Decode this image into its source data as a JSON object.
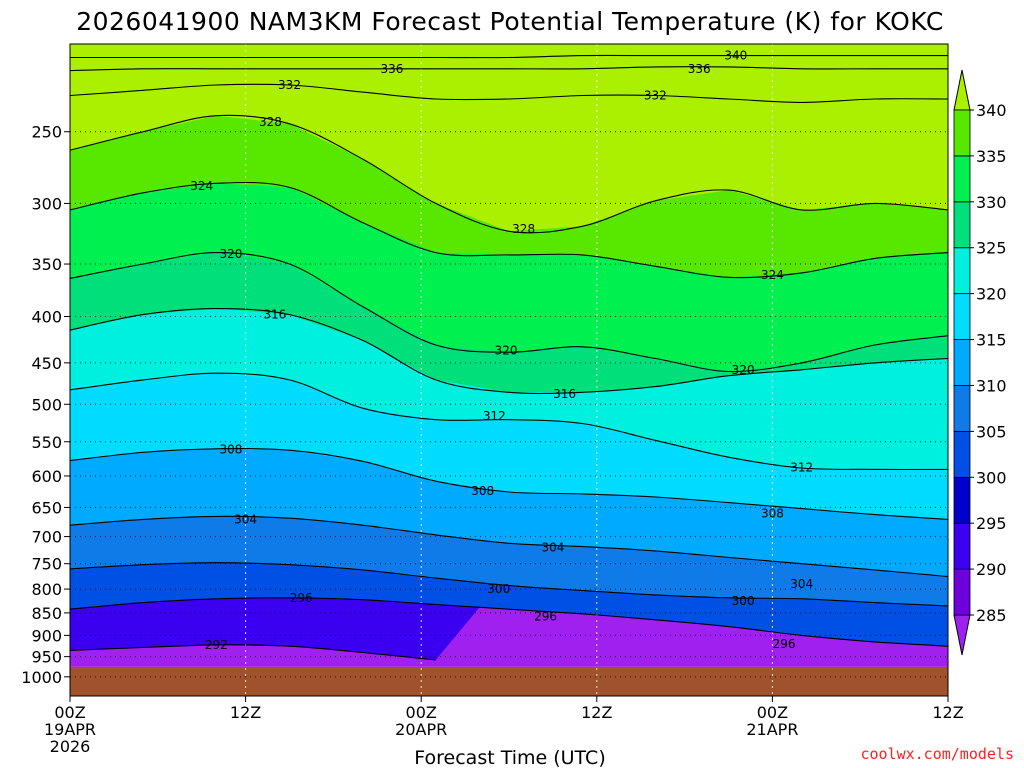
{
  "chart_data": {
    "type": "heatmap",
    "title": "2026041900 NAM3KM Forecast Potential Temperature (K) for KOKC",
    "xlabel": "Forecast Time (UTC)",
    "ylabel": "",
    "x_range_hours": [
      0,
      60
    ],
    "x_ticks": [
      {
        "hour": 0,
        "lines": [
          "00Z",
          "19APR",
          "2026"
        ]
      },
      {
        "hour": 12,
        "lines": [
          "12Z"
        ]
      },
      {
        "hour": 24,
        "lines": [
          "00Z",
          "20APR"
        ]
      },
      {
        "hour": 36,
        "lines": [
          "12Z"
        ]
      },
      {
        "hour": 48,
        "lines": [
          "00Z",
          "21APR"
        ]
      },
      {
        "hour": 60,
        "lines": [
          "12Z"
        ]
      }
    ],
    "y_scale": "log-pressure",
    "y_range_hPa": [
      1050,
      200
    ],
    "y_ticks": [
      250,
      300,
      350,
      400,
      450,
      500,
      550,
      600,
      650,
      700,
      750,
      800,
      850,
      900,
      950,
      1000
    ],
    "grid": "dotted",
    "ground_top_hPa": 975,
    "ground_color": "#a0522d",
    "colorbar": {
      "placement": "right",
      "levels": [
        285,
        290,
        295,
        300,
        305,
        310,
        315,
        320,
        325,
        330,
        335,
        340
      ],
      "labels": [
        "285",
        "290",
        "295",
        "300",
        "305",
        "310",
        "315",
        "320",
        "325",
        "330",
        "335",
        "340"
      ],
      "colors": [
        "#a020f0",
        "#6e00dc",
        "#3c00f0",
        "#0000cd",
        "#0050e6",
        "#0e7be8",
        "#00aaff",
        "#00dcff",
        "#00f0e0",
        "#00e07a",
        "#00f050",
        "#58e800",
        "#aaf000"
      ]
    },
    "contour_interval": 4,
    "contours": [
      {
        "value": 292,
        "p": [
          935,
          928,
          922,
          925,
          940,
          958
        ]
      },
      {
        "value": 296,
        "p": [
          842,
          828,
          820,
          818,
          822,
          832,
          842,
          852,
          865,
          880,
          900,
          915,
          925
        ]
      },
      {
        "value": 300,
        "p": [
          760,
          752,
          748,
          752,
          762,
          778,
          793,
          803,
          812,
          818,
          820,
          828,
          835
        ]
      },
      {
        "value": 304,
        "p": [
          680,
          670,
          665,
          668,
          680,
          697,
          712,
          718,
          726,
          738,
          750,
          762,
          775
        ]
      },
      {
        "value": 308,
        "p": [
          577,
          565,
          560,
          562,
          578,
          608,
          625,
          628,
          633,
          642,
          652,
          662,
          670
        ]
      },
      {
        "value": 312,
        "p": [
          482,
          470,
          462,
          470,
          505,
          520,
          520,
          525,
          548,
          572,
          588,
          590,
          590
        ]
      },
      {
        "value": 316,
        "p": [
          414,
          398,
          392,
          398,
          425,
          470,
          485,
          485,
          478,
          465,
          458,
          450,
          445
        ]
      },
      {
        "value": 320,
        "p": [
          363,
          350,
          340,
          350,
          390,
          430,
          438,
          432,
          445,
          460,
          450,
          430,
          420
        ]
      },
      {
        "value": 324,
        "p": [
          305,
          292,
          285,
          288,
          315,
          340,
          342,
          342,
          352,
          362,
          358,
          345,
          340
        ]
      },
      {
        "value": 328,
        "p": [
          262,
          250,
          240,
          245,
          268,
          300,
          322,
          318,
          298,
          290,
          305,
          300,
          305
        ]
      },
      {
        "value": 332,
        "p": [
          228,
          225,
          222,
          222,
          226,
          230,
          230,
          228,
          228,
          230,
          232,
          230,
          230
        ]
      },
      {
        "value": 336,
        "p": [
          214,
          213,
          213,
          213,
          213,
          213,
          213,
          213,
          212,
          212,
          213,
          213,
          213
        ]
      },
      {
        "value": 340,
        "p": [
          207,
          207,
          207,
          207,
          207,
          207,
          207,
          206,
          206,
          206,
          206,
          206,
          206
        ]
      }
    ],
    "contour_hours": [
      0,
      5,
      10,
      15,
      20,
      25,
      30,
      35,
      40,
      45,
      50,
      55,
      60
    ],
    "contour_labels": [
      {
        "text": "292",
        "hour": 10.0,
        "p": 922
      },
      {
        "text": "296",
        "hour": 15.8,
        "p": 818
      },
      {
        "text": "296",
        "hour": 32.5,
        "p": 858
      },
      {
        "text": "296",
        "hour": 48.8,
        "p": 920
      },
      {
        "text": "300",
        "hour": 29.3,
        "p": 800
      },
      {
        "text": "300",
        "hour": 46.0,
        "p": 825
      },
      {
        "text": "304",
        "hour": 12.0,
        "p": 670
      },
      {
        "text": "304",
        "hour": 33.0,
        "p": 720
      },
      {
        "text": "304",
        "hour": 50.0,
        "p": 790
      },
      {
        "text": "308",
        "hour": 11.0,
        "p": 561
      },
      {
        "text": "308",
        "hour": 28.2,
        "p": 623
      },
      {
        "text": "308",
        "hour": 48.0,
        "p": 660
      },
      {
        "text": "312",
        "hour": 29.0,
        "p": 515
      },
      {
        "text": "312",
        "hour": 50.0,
        "p": 587
      },
      {
        "text": "316",
        "hour": 14.0,
        "p": 398
      },
      {
        "text": "316",
        "hour": 33.8,
        "p": 487
      },
      {
        "text": "320",
        "hour": 11.0,
        "p": 341
      },
      {
        "text": "320",
        "hour": 29.8,
        "p": 436
      },
      {
        "text": "320",
        "hour": 46.0,
        "p": 458
      },
      {
        "text": "324",
        "hour": 9.0,
        "p": 287
      },
      {
        "text": "324",
        "hour": 48.0,
        "p": 360
      },
      {
        "text": "328",
        "hour": 13.7,
        "p": 244
      },
      {
        "text": "328",
        "hour": 31.0,
        "p": 320
      },
      {
        "text": "332",
        "hour": 15.0,
        "p": 222
      },
      {
        "text": "332",
        "hour": 40.0,
        "p": 228
      },
      {
        "text": "336",
        "hour": 22.0,
        "p": 213
      },
      {
        "text": "336",
        "hour": 43.0,
        "p": 213
      },
      {
        "text": "340",
        "hour": 45.5,
        "p": 206
      }
    ]
  },
  "credit": "coolwx.com/models"
}
